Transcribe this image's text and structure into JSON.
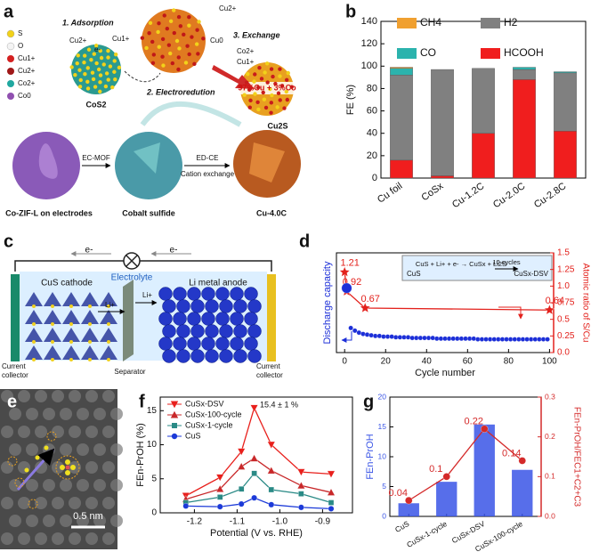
{
  "panel_labels": [
    "a",
    "b",
    "c",
    "d",
    "e",
    "f",
    "g"
  ],
  "panel_a": {
    "legend": [
      "S",
      "O",
      "Cu1+",
      "Cu2+",
      "Co2+",
      "Co0"
    ],
    "steps": [
      "1. Adsorption",
      "2. Electroredution",
      "3. Exchange"
    ],
    "ions": [
      "Cu2+",
      "Cu1+",
      "e-",
      "Cu2+",
      "Cu0",
      "Co2+",
      "Cu1+"
    ],
    "particles": [
      "CoS2",
      "Cu2S"
    ],
    "composition": "97%Cu + 3%Co",
    "arrows": [
      "EC-MOF",
      "ED-CE",
      "Cation exchange"
    ],
    "images": [
      "Co-ZIF-L on electrodes",
      "Cobalt sulfide",
      "Cu-4.0C"
    ]
  },
  "panel_c": {
    "electrons": [
      "e-",
      "e-"
    ],
    "electrolyte": "Electrolyte",
    "cathode": "CuS cathode",
    "anode": "Li metal anode",
    "ions": [
      "Li+",
      "Li+"
    ],
    "collectors": [
      [
        "Current",
        "collector"
      ],
      [
        "Current",
        "collector"
      ]
    ],
    "separator": "Separator"
  },
  "panel_e": {
    "scale_bar": "0.5 nm"
  },
  "chart_data": [
    {
      "type": "bar",
      "stacked": true,
      "ylabel": "FE (%)",
      "categories": [
        "Cu foil",
        "CoSx",
        "Cu-1.2C",
        "Cu-2.0C",
        "Cu-2.8C"
      ],
      "ylim": [
        0,
        140
      ],
      "yticks": [
        0,
        20,
        40,
        60,
        80,
        100,
        120,
        140
      ],
      "series": [
        {
          "name": "HCOOH",
          "color": "#f01e1e",
          "values": [
            16,
            2,
            40,
            88,
            42
          ]
        },
        {
          "name": "H2",
          "color": "#808080",
          "values": [
            76,
            95,
            58,
            9,
            52
          ]
        },
        {
          "name": "CO",
          "color": "#2bb3ad",
          "values": [
            6,
            0,
            0,
            2,
            1
          ]
        },
        {
          "name": "CH4",
          "color": "#f0a030",
          "values": [
            1,
            0,
            0,
            0,
            0
          ]
        }
      ]
    },
    {
      "type": "line",
      "xlabel": "Cycle number",
      "ylabel": "Discharge capacity",
      "y2label": "Atomic ratio of S/Cu",
      "xlim": [
        -4,
        102
      ],
      "xticks": [
        0,
        20,
        40,
        60,
        80,
        100
      ],
      "ylim": [
        0,
        1.5
      ],
      "y2lim": [
        0,
        1.5
      ],
      "y2ticks": [
        {
          "value": 0,
          "label": "0.0"
        },
        0.25,
        0.5,
        0.75,
        {
          "value": 1,
          "label": "1.0"
        },
        1.25,
        1.5
      ],
      "annotations": [
        "CuS + Li+ + e- → CuSx + Li2S",
        "10 cycles",
        "CuS",
        "CuSx-DSV"
      ],
      "series": [
        {
          "color": "#e3211c",
          "axis": "y2",
          "show_values": true,
          "x": [
            0,
            1,
            10,
            100
          ],
          "values": [
            1.21,
            0.92,
            0.67,
            0.64
          ]
        },
        {
          "color": "#1c2fd8",
          "x": [
            1,
            3,
            5,
            7,
            9,
            11,
            13,
            15,
            17,
            19,
            21,
            23,
            25,
            27,
            29,
            31,
            33,
            35,
            37,
            39,
            41,
            43,
            45,
            47,
            49,
            51,
            53,
            55,
            57,
            59,
            61,
            63,
            65,
            67,
            69,
            71,
            73,
            75,
            77,
            79,
            81,
            83,
            85,
            87,
            89,
            91,
            93,
            95,
            97,
            99
          ],
          "values": [
            0.97,
            0.37,
            0.33,
            0.3,
            0.28,
            0.27,
            0.26,
            0.25,
            0.25,
            0.24,
            0.24,
            0.24,
            0.23,
            0.23,
            0.23,
            0.23,
            0.22,
            0.22,
            0.22,
            0.22,
            0.22,
            0.22,
            0.21,
            0.21,
            0.21,
            0.21,
            0.21,
            0.21,
            0.21,
            0.21,
            0.21,
            0.21,
            0.2,
            0.2,
            0.2,
            0.2,
            0.2,
            0.2,
            0.2,
            0.2,
            0.2,
            0.2,
            0.2,
            0.2,
            0.2,
            0.2,
            0.2,
            0.2,
            0.2,
            0.2
          ]
        }
      ]
    },
    {
      "type": "line",
      "xlabel": "Potential (V vs. RHE)",
      "ylabel": "FEn-PrOH (%)",
      "x": [
        -1.22,
        -1.14,
        -1.09,
        -1.06,
        -1.02,
        -0.95,
        -0.88
      ],
      "xlim": [
        -1.28,
        -0.83
      ],
      "xticks": [
        -1.2,
        -1.1,
        {
          "value": -1,
          "label": "-1.0"
        },
        -0.9
      ],
      "ylim": [
        0,
        17
      ],
      "yticks": [
        0,
        5,
        10,
        15
      ],
      "annotations": [
        "15.4 ± 1 %"
      ],
      "series": [
        {
          "name": "CuSx-DSV",
          "color": "#e8201c",
          "values": [
            2.5,
            5.2,
            9,
            15.4,
            10,
            6,
            5.7
          ]
        },
        {
          "name": "CuSx-100-cycle",
          "color": "#c8282a",
          "values": [
            2,
            3.5,
            6.8,
            8,
            6.2,
            4,
            3
          ]
        },
        {
          "name": "CuSx-1-cycle",
          "color": "#2a8a86",
          "values": [
            1.5,
            2.3,
            3.5,
            5.8,
            3.4,
            2.8,
            1.5
          ]
        },
        {
          "name": "CuS",
          "color": "#1c3ad8",
          "values": [
            1,
            0.9,
            1.3,
            2.2,
            1.2,
            0.8,
            0.6
          ]
        }
      ]
    },
    {
      "type": "bar",
      "ylabel": "FEn-PrOH",
      "y2label": "FEn-PrOH/FEC1+C2+C3",
      "categories": [
        "CuS",
        "CuSx-1-cycle",
        "CuSx-DSV",
        "CuSx-100-cycle"
      ],
      "ylim": [
        0,
        20
      ],
      "yticks": [
        0,
        5,
        10,
        15,
        20
      ],
      "y2lim": [
        0,
        0.3
      ],
      "y2ticks": [
        {
          "value": 0,
          "label": "0.0"
        },
        0.1,
        0.2,
        0.3
      ],
      "series": [
        {
          "color": "#3a55e6",
          "values": [
            2.2,
            5.8,
            15.4,
            7.8
          ]
        },
        {
          "color": "#d42a2a",
          "axis": "y2",
          "show_values": true,
          "values": [
            0.04,
            0.1,
            0.22,
            0.14
          ]
        }
      ]
    }
  ]
}
